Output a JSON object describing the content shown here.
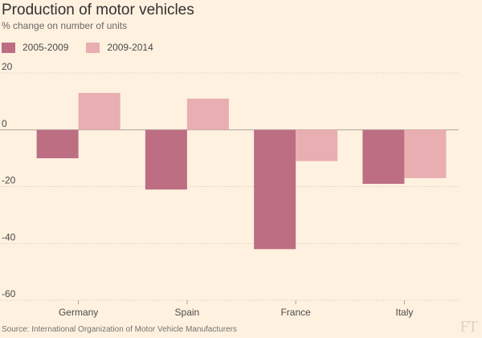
{
  "chart_data": {
    "type": "bar",
    "title": "Production of motor vehicles",
    "subtitle": "% change on number of units",
    "categories": [
      "Germany",
      "Spain",
      "France",
      "Italy"
    ],
    "series": [
      {
        "name": "2005-2009",
        "values": [
          -10,
          -21,
          -42,
          -19
        ],
        "color": "#bd6e83"
      },
      {
        "name": "2009-2014",
        "values": [
          13,
          11,
          -11,
          -17
        ],
        "color": "#e8aeb1"
      }
    ],
    "ylim": [
      -60,
      20
    ],
    "yticks": [
      "20",
      "0",
      "-20",
      "-40",
      "-60"
    ],
    "xlabel": "",
    "ylabel": "",
    "grid": true,
    "legend_position": "top-left"
  },
  "source": "Source: International Organization of Motor Vehicle Manufacturers",
  "brand": "FT",
  "colors": {
    "background": "#fff1e0",
    "grid": "#cec6b9",
    "text": "#4a4a4a"
  }
}
